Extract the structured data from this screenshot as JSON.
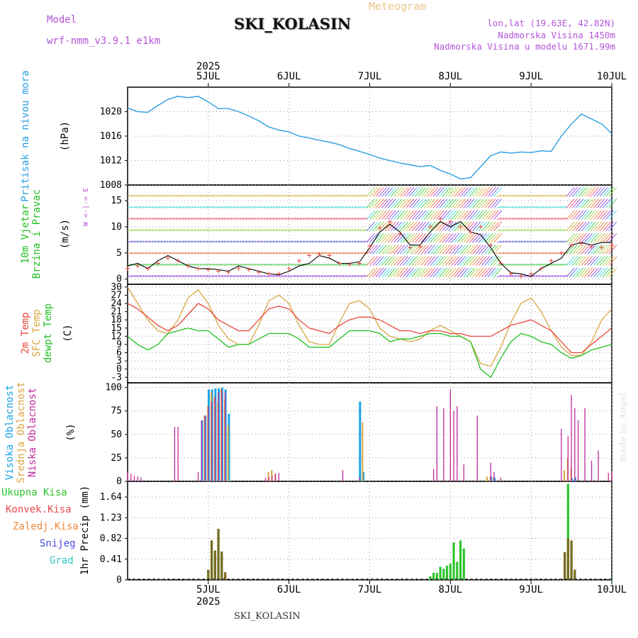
{
  "header": {
    "model_label": "Model",
    "model_name": "wrf-nmm_v3.9.1 e1km",
    "station": "SKI_KOLASIN",
    "meteogram_label": "Meteogram",
    "lonlat": "lon,lat (19.63E, 42.82N)",
    "altitude": "Nadmorska Visina 1450m",
    "altitude_model": "Nadmorska Visina u modelu 1671.99m"
  },
  "time_axis": {
    "year": "2025",
    "days": [
      "5JUL",
      "6JUL",
      "7JUL",
      "8JUL",
      "9JUL",
      "10JUL"
    ],
    "start_hour_offset": -12,
    "range_hours": [
      -12,
      132
    ]
  },
  "footer": {
    "station": "SKI_KOLASIN"
  },
  "watermark": "made by Angel",
  "colors": {
    "pressure": "#2a9ee0",
    "temp2m": "#e8473e",
    "sfc_temp": "#d9a541",
    "dewpoint": "#22c022",
    "cloud_high": "#1aa3e6",
    "cloud_mid": "#d9a541",
    "cloud_low": "#c02a9e",
    "precip_total": "#2ec42e",
    "precip_conv": "#e84a4a",
    "precip_frozen": "#f0883a",
    "snow": "#4b4be0",
    "graupel": "#2ec4c4"
  },
  "chart_data": [
    {
      "type": "line",
      "panel": "pressure",
      "ylabel_left": "Pritisak na nivou mora",
      "ylabel_unit": "(hPa)",
      "yticks": [
        1008,
        1012,
        1016,
        1020
      ],
      "ylim": [
        1008,
        1024
      ],
      "grid": true,
      "series": [
        {
          "name": "",
          "x": [
            -12,
            -9,
            -6,
            -3,
            0,
            3,
            6,
            9,
            12,
            15,
            18,
            21,
            24,
            27,
            30,
            33,
            36,
            39,
            42,
            45,
            48,
            51,
            54,
            57,
            60,
            63,
            66,
            69,
            72,
            75,
            78,
            81,
            84,
            87,
            90,
            93,
            96,
            99,
            102,
            105,
            108,
            111,
            114,
            117,
            120,
            123,
            126,
            129,
            132
          ],
          "y": [
            1020.6,
            1020,
            1019.9,
            1021,
            1022,
            1022.5,
            1022.3,
            1022.5,
            1021.6,
            1020.5,
            1020.5,
            1020,
            1019.3,
            1018.5,
            1017.5,
            1017,
            1016.7,
            1016,
            1015.7,
            1015.3,
            1015,
            1014.6,
            1014,
            1013.5,
            1013,
            1012.4,
            1012,
            1011.6,
            1011.3,
            1011,
            1011.2,
            1010.4,
            1009.8,
            1009,
            1009.2,
            1011,
            1012.8,
            1013.4,
            1013.2,
            1013.4,
            1013.3,
            1013.6,
            1013.5,
            1016,
            1018,
            1019.6,
            1018.8,
            1018,
            1016.4
          ]
        }
      ]
    },
    {
      "type": "line",
      "panel": "wind",
      "ylabel_left": "10m Vjetar",
      "ylabel_left2": "Brzina i Pravac",
      "ylabel_unit": "(m/s)",
      "direction_legend": "W <-|-> E",
      "yticks": [
        0,
        5,
        10,
        15
      ],
      "ylim": [
        -1,
        18
      ],
      "grid": true,
      "series": [
        {
          "name": "",
          "x": [
            -12,
            -9,
            -6,
            -3,
            0,
            3,
            6,
            9,
            12,
            15,
            18,
            21,
            24,
            27,
            30,
            33,
            36,
            39,
            42,
            45,
            48,
            51,
            54,
            57,
            60,
            63,
            66,
            69,
            72,
            75,
            78,
            81,
            84,
            87,
            90,
            93,
            96,
            99,
            102,
            105,
            108,
            111,
            114,
            117,
            120,
            123,
            126,
            129,
            132
          ],
          "y": [
            2.5,
            3,
            2,
            3.5,
            4.5,
            3.5,
            2.5,
            2,
            2,
            1.8,
            1.5,
            2.5,
            2,
            1.5,
            1,
            0.8,
            1.5,
            2.5,
            3,
            4.5,
            4,
            3,
            3,
            3.3,
            6,
            9,
            10.5,
            9,
            6.5,
            6.5,
            9,
            11,
            10,
            11,
            9,
            8.5,
            6,
            3,
            1.2,
            1,
            0.5,
            2,
            3,
            4,
            6.5,
            7,
            6.5,
            7,
            7
          ]
        },
        {
          "name": "",
          "x": [
            -12,
            -9,
            -6,
            -3,
            0,
            3,
            6,
            9,
            12,
            15,
            18,
            21,
            24,
            27,
            30,
            33,
            36,
            39,
            42,
            45,
            48,
            51,
            54,
            57,
            60,
            63,
            66,
            69,
            72,
            75,
            78,
            81,
            84,
            87,
            90,
            93,
            96,
            99,
            102,
            105,
            108,
            111,
            114,
            117,
            120,
            123,
            126,
            129,
            132
          ],
          "y": [
            2,
            2.5,
            2,
            3,
            4,
            3.5,
            2.5,
            2,
            1.8,
            1.5,
            1.3,
            2,
            1.8,
            1.3,
            1,
            1,
            2,
            3.5,
            4.5,
            4.8,
            4.5,
            3,
            2.8,
            3,
            6.3,
            9.8,
            11,
            8.6,
            6,
            6.2,
            10,
            11.5,
            11,
            10,
            9,
            10,
            6.5,
            3,
            1,
            0.5,
            1,
            2,
            3.5,
            5,
            6.5,
            6.8,
            6.2,
            6,
            6.5
          ]
        }
      ]
    },
    {
      "type": "line",
      "panel": "temperature",
      "ylabel_left": "2m Temp",
      "ylabel_left2": "SFC Temp",
      "ylabel_left3": "dewpt Temp",
      "ylabel_unit": "(C)",
      "yticks": [
        -3,
        0,
        3,
        6,
        9,
        12,
        15,
        18,
        21,
        24,
        27,
        30
      ],
      "ylim": [
        -5,
        31
      ],
      "grid": true,
      "series": [
        {
          "name": "2m Temp",
          "x": [
            -12,
            -9,
            -6,
            -3,
            0,
            3,
            6,
            9,
            12,
            15,
            18,
            21,
            24,
            27,
            30,
            33,
            36,
            39,
            42,
            45,
            48,
            51,
            54,
            57,
            60,
            63,
            66,
            69,
            72,
            75,
            78,
            81,
            84,
            87,
            90,
            93,
            96,
            99,
            102,
            105,
            108,
            111,
            114,
            117,
            120,
            123,
            126,
            129,
            132
          ],
          "y": [
            24,
            22,
            19,
            16,
            14,
            16,
            20,
            24,
            22,
            18,
            16,
            14,
            14,
            18,
            22,
            23,
            22,
            18,
            15,
            14,
            13,
            16,
            18,
            19,
            19,
            18,
            16,
            14,
            14,
            13,
            14,
            14,
            13,
            13,
            12,
            12,
            12,
            14,
            16,
            17,
            18,
            16,
            14,
            10,
            6,
            6,
            9,
            12,
            15
          ]
        },
        {
          "name": "SFC Temp",
          "x": [
            -12,
            -9,
            -6,
            -3,
            0,
            3,
            6,
            9,
            12,
            15,
            18,
            21,
            24,
            27,
            30,
            33,
            36,
            39,
            42,
            45,
            48,
            51,
            54,
            57,
            60,
            63,
            66,
            69,
            72,
            75,
            78,
            81,
            84,
            87,
            90,
            93,
            96,
            99,
            102,
            105,
            108,
            111,
            114,
            117,
            120,
            123,
            126,
            129,
            132
          ],
          "y": [
            30,
            24,
            18,
            14,
            13,
            18,
            26,
            29,
            24,
            16,
            11,
            9,
            9,
            16,
            25,
            27,
            24,
            16,
            10,
            9,
            9,
            17,
            24,
            25,
            22,
            15,
            12,
            11,
            10,
            11,
            14,
            16,
            14,
            12,
            10,
            2,
            1,
            8,
            17,
            24,
            26,
            21,
            14,
            8,
            5,
            5,
            10,
            18,
            22
          ]
        },
        {
          "name": "dewpt Temp",
          "x": [
            -12,
            -9,
            -6,
            -3,
            0,
            3,
            6,
            9,
            12,
            15,
            18,
            21,
            24,
            27,
            30,
            33,
            36,
            39,
            42,
            45,
            48,
            51,
            54,
            57,
            60,
            63,
            66,
            69,
            72,
            75,
            78,
            81,
            84,
            87,
            90,
            93,
            96,
            99,
            102,
            105,
            108,
            111,
            114,
            117,
            120,
            123,
            126,
            129,
            132
          ],
          "y": [
            12,
            9,
            7,
            9,
            13,
            14,
            15,
            14,
            14,
            11,
            8,
            9,
            9,
            11,
            13,
            13,
            13,
            11,
            8,
            8,
            8,
            11,
            14,
            14,
            14,
            13,
            10,
            11,
            11,
            12,
            13,
            13,
            12,
            12,
            10,
            0,
            -3,
            4,
            10,
            13,
            12,
            10,
            9,
            6,
            4,
            5,
            7,
            8,
            9
          ]
        }
      ]
    },
    {
      "type": "bar",
      "panel": "clouds",
      "ylabel_left": "Visoka Oblacnost",
      "ylabel_left2": "Srednja Oblacnost",
      "ylabel_left3": "Niska Oblacnost",
      "ylabel_unit": "(%)",
      "yticks": [
        0,
        25,
        50,
        75,
        100
      ],
      "ylim": [
        0,
        105
      ],
      "grid": true,
      "series": [
        {
          "name": "Visoka Oblacnost",
          "x": [
            10,
            11,
            12,
            13,
            14,
            15,
            16,
            17,
            18,
            57,
            58,
            96,
            97,
            120,
            121
          ],
          "y": [
            65,
            70,
            98,
            98,
            99,
            99,
            100,
            98,
            72,
            85,
            10,
            5,
            4,
            3,
            4
          ]
        },
        {
          "name": "Srednja Oblacnost",
          "x": [
            11,
            12,
            13,
            14,
            15,
            16,
            17,
            18,
            30,
            31,
            32,
            58,
            95,
            96,
            97,
            118,
            119,
            120
          ],
          "y": [
            70,
            80,
            95,
            90,
            85,
            98,
            88,
            60,
            10,
            12,
            8,
            63,
            5,
            5,
            4,
            12,
            25,
            15
          ]
        },
        {
          "name": "Niska Oblacnost",
          "x": [
            -12,
            -11,
            -10,
            -9,
            -8,
            2,
            3,
            9,
            10,
            11,
            12,
            13,
            14,
            15,
            16,
            17,
            29,
            30,
            31,
            32,
            33,
            52,
            57,
            79,
            80,
            82,
            84,
            85,
            86,
            88,
            92,
            96,
            97,
            99,
            117,
            119,
            120,
            121,
            122,
            124,
            126,
            128,
            131,
            132
          ],
          "y": [
            10,
            8,
            6,
            5,
            4,
            58,
            58,
            10,
            65,
            70,
            80,
            85,
            90,
            95,
            98,
            95,
            4,
            5,
            6,
            8,
            9,
            12,
            4,
            13,
            80,
            78,
            98,
            75,
            80,
            18,
            70,
            20,
            10,
            4,
            56,
            48,
            92,
            78,
            65,
            78,
            22,
            33,
            9,
            10
          ]
        }
      ]
    },
    {
      "type": "bar",
      "panel": "precip",
      "ylabel_left": "1hr Precip",
      "ylabel_unit": "(mm)",
      "legend": [
        "Ukupna Kisa",
        "Konvek.Kisa",
        "Zaledj.Kisa",
        "Snijeg",
        "Grad"
      ],
      "yticks": [
        0,
        0.41,
        0.82,
        1.23,
        1.64
      ],
      "ylim": [
        0,
        1.95
      ],
      "grid": true,
      "series": [
        {
          "name": "Ukupna Kisa",
          "x": [
            12,
            13,
            14,
            15,
            16,
            17,
            78,
            79,
            80,
            81,
            82,
            83,
            84,
            85,
            86,
            87,
            88,
            118,
            119,
            120,
            121,
            122,
            132
          ],
          "y": [
            0.2,
            0.78,
            0.58,
            1.01,
            0.56,
            0.15,
            0.07,
            0.14,
            0.14,
            0.26,
            0.22,
            0.28,
            0.32,
            0.74,
            0.36,
            0.78,
            0.62,
            0.55,
            1.9,
            0.78,
            0.2,
            0.01,
            0.02
          ]
        },
        {
          "name": "Konvek.Kisa",
          "x": [
            12,
            13,
            14,
            15,
            16,
            17,
            118,
            119,
            120,
            121
          ],
          "y": [
            0.2,
            0.78,
            0.58,
            1.01,
            0.56,
            0.15,
            0.55,
            0.82,
            0.78,
            0.2
          ]
        }
      ]
    }
  ]
}
